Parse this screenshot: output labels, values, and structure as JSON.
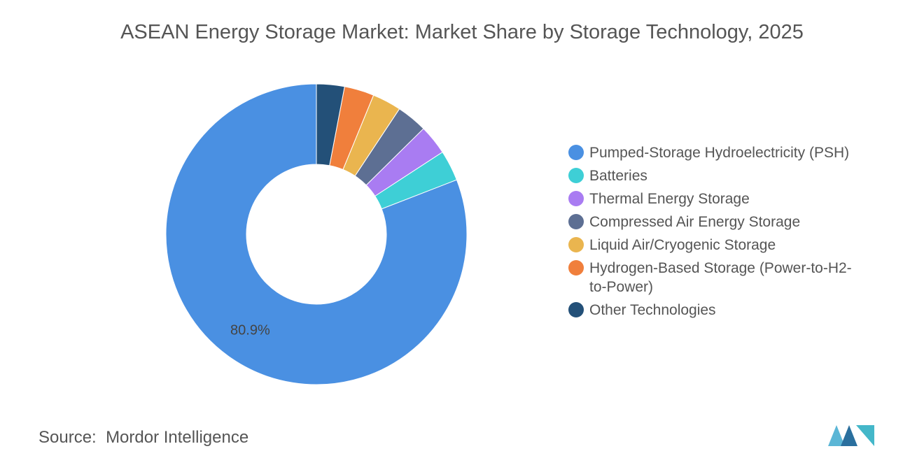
{
  "chart_data": {
    "type": "donut",
    "title": "ASEAN Energy Storage Market: Market Share by Storage Technology, 2025",
    "categories": [
      "Pumped-Storage Hydroelectricity (PSH)",
      "Batteries",
      "Thermal Energy Storage",
      "Compressed Air Energy Storage",
      "Liquid Air/Cryogenic Storage",
      "Hydrogen-Based Storage (Power-to-H2-to-Power)",
      "Other Technologies"
    ],
    "values": [
      80.9,
      3.3,
      3.2,
      3.3,
      3.1,
      3.2,
      3.0
    ],
    "value_labels": [
      "80.9%",
      null,
      null,
      null,
      null,
      null,
      null
    ],
    "colors": [
      "#4a90e2",
      "#3ecfd6",
      "#a97cf2",
      "#5d6f93",
      "#eab54f",
      "#f07f3c",
      "#235078"
    ],
    "legend": "right"
  },
  "source": {
    "label": "Source:",
    "text": "Mordor Intelligence"
  }
}
